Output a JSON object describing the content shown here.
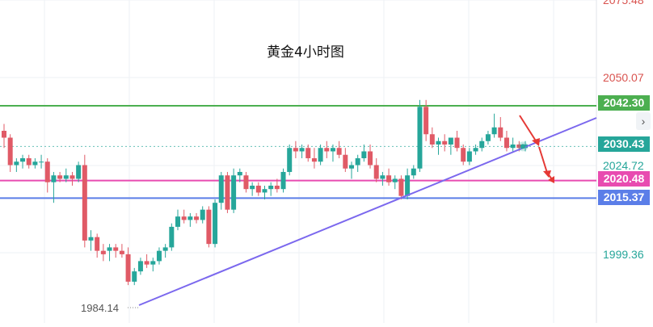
{
  "chart_data": {
    "type": "candlestick",
    "title": "黄金4小时图",
    "axis": {
      "ylim": [
        1982,
        2076
      ],
      "top_tick": "2075.48",
      "ticks": [
        {
          "label": "2050.07",
          "value": 2050.07,
          "color": "#d9534f"
        },
        {
          "label": "2024.72",
          "value": 2024.72,
          "color": "#26a69a"
        },
        {
          "label": "1999.36",
          "value": 1999.36,
          "color": "#26a69a"
        }
      ]
    },
    "horizontal_lines": [
      {
        "value": 2042.3,
        "label": "2042.30",
        "color": "#4caf50"
      },
      {
        "value": 2020.48,
        "label": "2020.48",
        "color": "#e84bb0"
      },
      {
        "value": 2015.37,
        "label": "2015.37",
        "color": "#5b7ee8"
      }
    ],
    "last_price": {
      "value": 2030.43,
      "label": "2030.43",
      "color": "#26a69a"
    },
    "low_marker": {
      "value": 1984.14,
      "label": "1984.14"
    },
    "colors": {
      "up": "#26a69a",
      "down": "#e05a66",
      "trendline": "#7b68ee",
      "arrow": "#e53935"
    },
    "candles": [
      [
        2035,
        2037,
        2030,
        2033
      ],
      [
        2033,
        2034,
        2023,
        2025
      ],
      [
        2025,
        2027,
        2023,
        2026
      ],
      [
        2026,
        2028,
        2024,
        2027
      ],
      [
        2027,
        2028,
        2024,
        2025
      ],
      [
        2025,
        2027,
        2024,
        2026
      ],
      [
        2026,
        2028,
        2024,
        2026
      ],
      [
        2026,
        2027,
        2017,
        2020
      ],
      [
        2020,
        2023,
        2014,
        2022
      ],
      [
        2022,
        2023,
        2020,
        2021
      ],
      [
        2021,
        2024,
        2020,
        2022
      ],
      [
        2022,
        2023,
        2019,
        2021
      ],
      [
        2021,
        2026,
        2020,
        2025
      ],
      [
        2025,
        2028,
        2001,
        2003
      ],
      [
        2003,
        2006,
        2000,
        2004
      ],
      [
        2004,
        2005,
        1998,
        2000
      ],
      [
        2000,
        2002,
        1997,
        1999
      ],
      [
        2000,
        2002,
        1997,
        2001
      ],
      [
        2001,
        2002,
        1998,
        2000
      ],
      [
        2000,
        2002,
        1998,
        1999
      ],
      [
        1999,
        2001,
        1990,
        1991
      ],
      [
        1991,
        1995,
        1990,
        1994
      ],
      [
        1994,
        1998,
        1993,
        1997
      ],
      [
        1997,
        1999,
        1995,
        1996
      ],
      [
        1996,
        1998,
        1994,
        1997
      ],
      [
        1997,
        2001,
        1996,
        2000
      ],
      [
        2000,
        2002,
        1998,
        2001
      ],
      [
        2001,
        2008,
        2000,
        2007
      ],
      [
        2007,
        2012,
        2006,
        2010
      ],
      [
        2010,
        2012,
        2008,
        2009
      ],
      [
        2009,
        2011,
        2007,
        2010
      ],
      [
        2010,
        2011,
        2008,
        2009
      ],
      [
        2009,
        2013,
        2008,
        2012
      ],
      [
        2012,
        2013,
        2001,
        2002
      ],
      [
        2002,
        2015,
        2001,
        2014
      ],
      [
        2014,
        2023,
        2012,
        2022
      ],
      [
        2022,
        2023,
        2011,
        2012
      ],
      [
        2012,
        2024,
        2011,
        2022
      ],
      [
        2022,
        2024,
        2020,
        2023
      ],
      [
        2022,
        2023,
        2017,
        2018
      ],
      [
        2018,
        2020,
        2016,
        2019
      ],
      [
        2019,
        2020,
        2016,
        2017
      ],
      [
        2017,
        2019,
        2015,
        2018
      ],
      [
        2018,
        2020,
        2016,
        2019
      ],
      [
        2019,
        2021,
        2017,
        2018
      ],
      [
        2018,
        2024,
        2017,
        2023
      ],
      [
        2023,
        2031,
        2022,
        2030
      ],
      [
        2030,
        2032,
        2027,
        2029
      ],
      [
        2029,
        2031,
        2027,
        2030
      ],
      [
        2030,
        2031,
        2026,
        2027
      ],
      [
        2027,
        2030,
        2024,
        2026
      ],
      [
        2026,
        2031,
        2025,
        2030
      ],
      [
        2030,
        2032,
        2027,
        2029
      ],
      [
        2029,
        2031,
        2026,
        2030
      ],
      [
        2030,
        2032,
        2027,
        2028
      ],
      [
        2028,
        2030,
        2023,
        2024
      ],
      [
        2024,
        2026,
        2021,
        2025
      ],
      [
        2025,
        2028,
        2023,
        2027
      ],
      [
        2027,
        2031,
        2026,
        2029
      ],
      [
        2029,
        2031,
        2024,
        2025
      ],
      [
        2025,
        2027,
        2020,
        2021
      ],
      [
        2021,
        2023,
        2019,
        2022
      ],
      [
        2022,
        2024,
        2019,
        2020
      ],
      [
        2020,
        2022,
        2018,
        2021
      ],
      [
        2021,
        2022,
        2015,
        2016
      ],
      [
        2016,
        2024,
        2015,
        2022
      ],
      [
        2022,
        2025,
        2021,
        2024
      ],
      [
        2024,
        2044,
        2023,
        2042
      ],
      [
        2042,
        2044,
        2032,
        2034
      ],
      [
        2034,
        2036,
        2030,
        2031
      ],
      [
        2031,
        2033,
        2028,
        2032
      ],
      [
        2032,
        2034,
        2029,
        2031
      ],
      [
        2031,
        2033,
        2028,
        2033
      ],
      [
        2033,
        2035,
        2029,
        2030
      ],
      [
        2030,
        2031,
        2025,
        2026
      ],
      [
        2026,
        2030,
        2025,
        2029
      ],
      [
        2029,
        2031,
        2028,
        2030
      ],
      [
        2030,
        2033,
        2029,
        2032
      ],
      [
        2032,
        2035,
        2031,
        2034
      ],
      [
        2034,
        2040,
        2033,
        2036
      ],
      [
        2036,
        2039,
        2032,
        2033
      ],
      [
        2033,
        2035,
        2029,
        2030
      ],
      [
        2030,
        2033,
        2029,
        2031
      ],
      [
        2031,
        2032,
        2029,
        2030
      ],
      [
        2030,
        2032,
        2029,
        2031
      ]
    ]
  }
}
